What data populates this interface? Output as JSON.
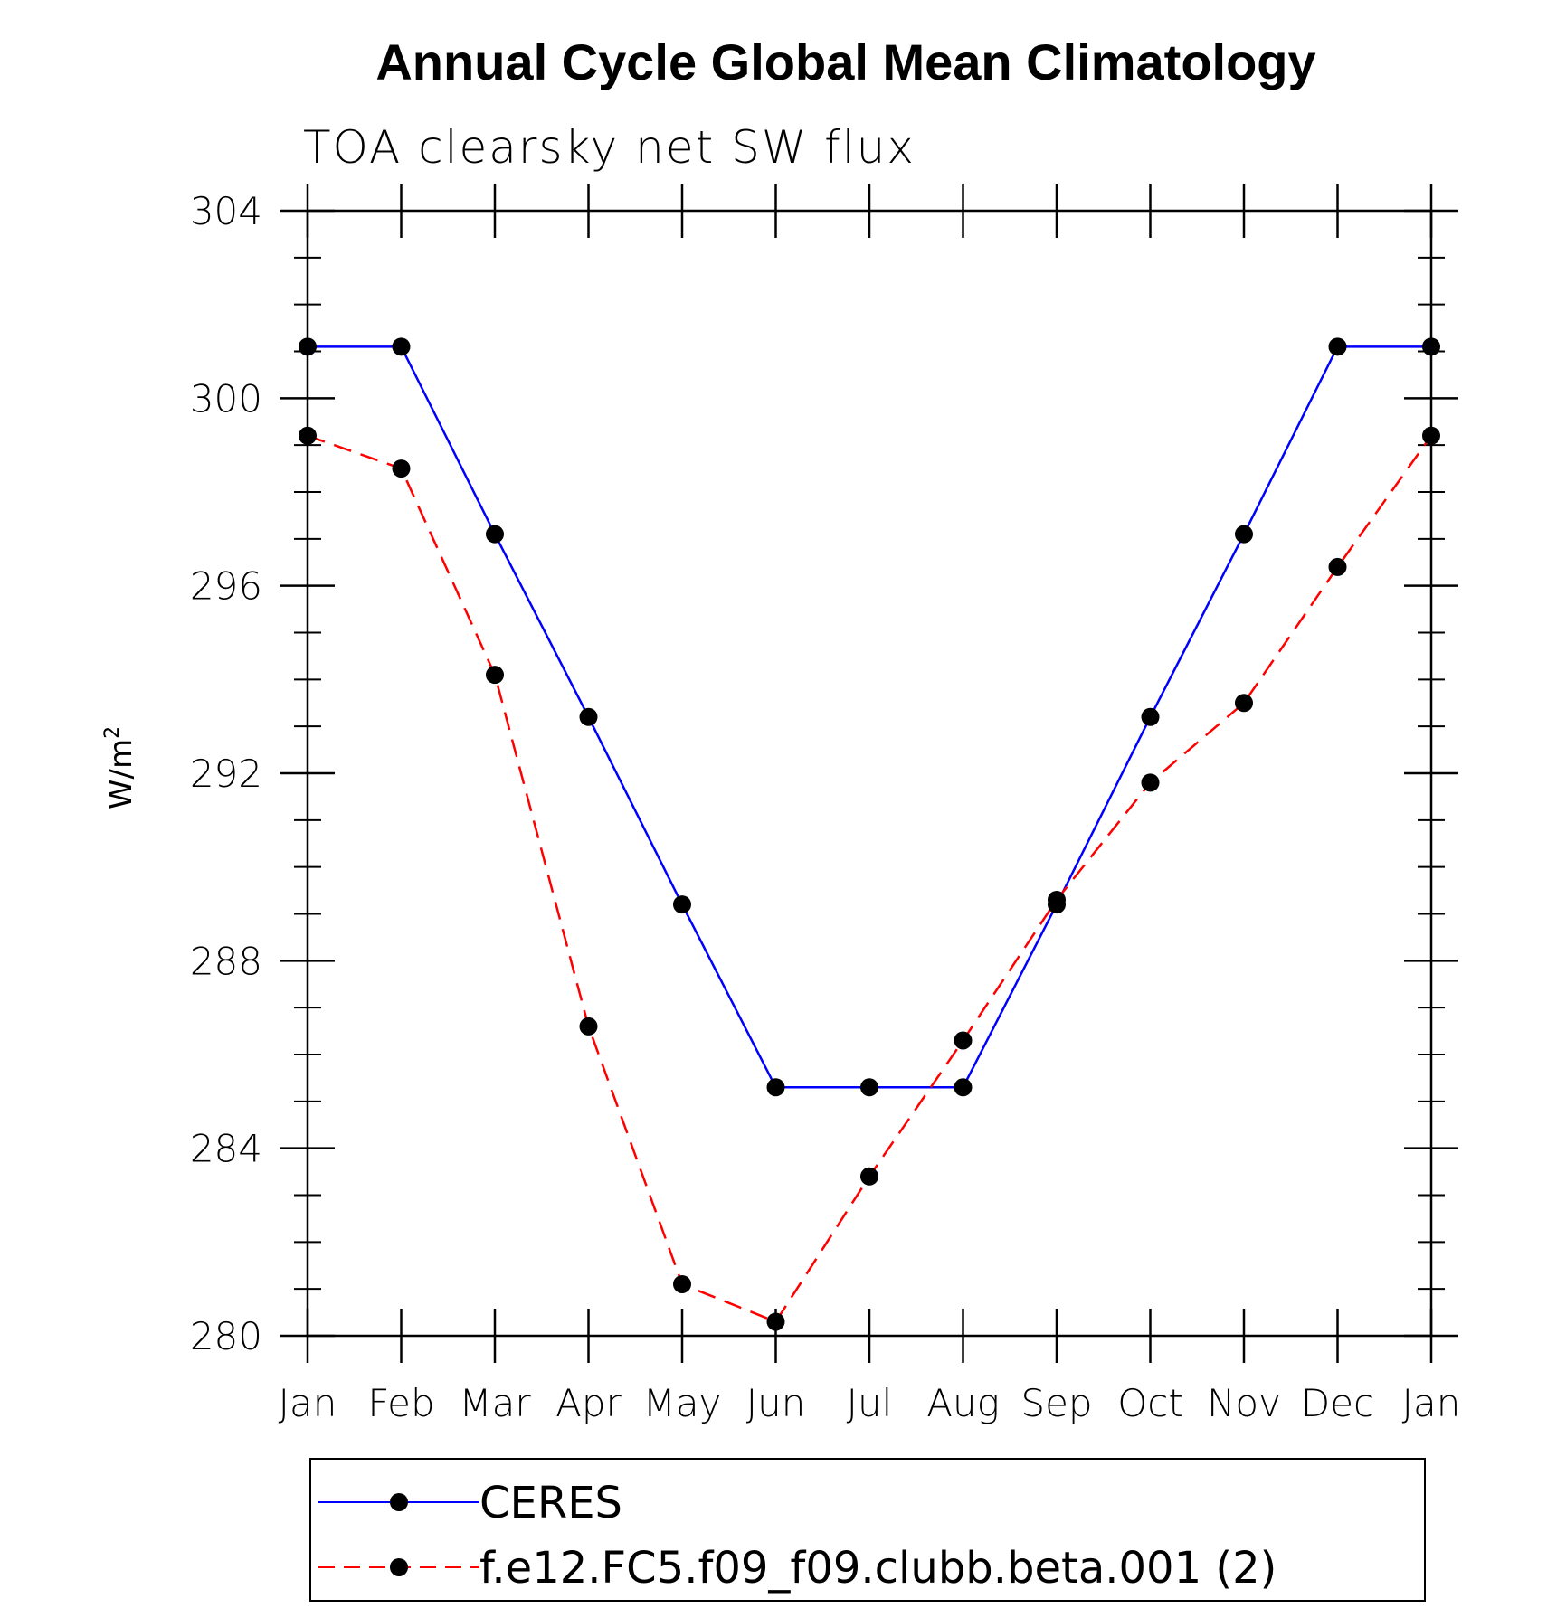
{
  "chart_data": {
    "type": "line",
    "title": "Annual Cycle Global Mean Climatology",
    "subtitle": "TOA clearsky net SW flux",
    "ylabel": "W/m",
    "ylabel_sup": "2",
    "categories": [
      "Jan",
      "Feb",
      "Mar",
      "Apr",
      "May",
      "Jun",
      "Jul",
      "Aug",
      "Sep",
      "Oct",
      "Nov",
      "Dec",
      "Jan"
    ],
    "ylim": [
      280,
      304
    ],
    "yticks": [
      280,
      284,
      288,
      292,
      296,
      300,
      304
    ],
    "y_minor_step": 1,
    "grid": false,
    "legend_position": "bottom",
    "series": [
      {
        "name": "CERES",
        "color": "#0000ff",
        "dash": "solid",
        "values": [
          301.1,
          301.1,
          297.1,
          293.2,
          289.2,
          285.3,
          285.3,
          285.3,
          289.2,
          293.2,
          297.1,
          301.1,
          301.1
        ]
      },
      {
        "name": "f.e12.FC5.f09_f09.clubb.beta.001 (2)",
        "color": "#ff0000",
        "dash": "dashed",
        "values": [
          299.2,
          298.5,
          294.1,
          286.6,
          281.1,
          280.3,
          283.4,
          286.3,
          289.3,
          291.8,
          293.5,
          296.4,
          299.2
        ]
      }
    ]
  }
}
